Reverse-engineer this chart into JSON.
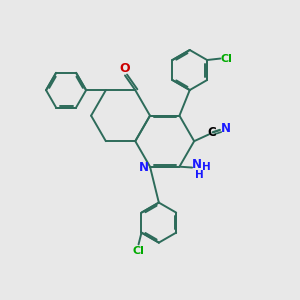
{
  "background_color": "#e8e8e8",
  "bond_color": "#2d6b5a",
  "N_color": "#1a1aff",
  "O_color": "#cc0000",
  "Cl_color": "#00aa00",
  "C_color": "#000000",
  "line_width": 1.4,
  "figsize": [
    3.0,
    3.0
  ],
  "dpi": 100,
  "xlim": [
    0,
    10
  ],
  "ylim": [
    0,
    10
  ]
}
